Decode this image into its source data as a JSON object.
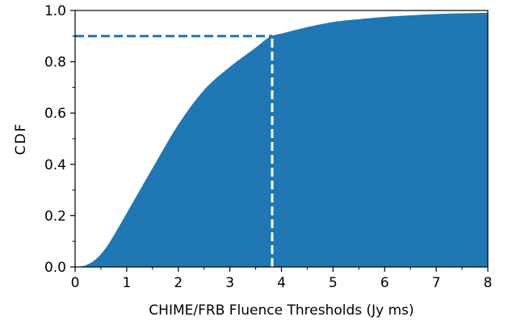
{
  "chart_data": {
    "type": "area",
    "title": "",
    "xlabel": "CHIME/FRB Fluence Thresholds  (Jy ms)",
    "ylabel": "CDF",
    "xlim": [
      0,
      8
    ],
    "ylim": [
      0,
      1
    ],
    "x_ticks": [
      "0",
      "1",
      "2",
      "3",
      "4",
      "5",
      "6",
      "7",
      "8"
    ],
    "y_ticks": [
      "0.0",
      "0.2",
      "0.4",
      "0.6",
      "0.8",
      "1.0"
    ],
    "grid": false,
    "legend": "none",
    "fill_color": "#1f77b4",
    "x": [
      0,
      0.2,
      0.4,
      0.6,
      0.8,
      1.0,
      1.2,
      1.5,
      2.0,
      2.5,
      3.0,
      3.5,
      3.8,
      4.0,
      4.5,
      5.0,
      5.5,
      6.0,
      6.5,
      7.0,
      7.5,
      8.0
    ],
    "y": [
      0.0,
      0.006,
      0.03,
      0.075,
      0.14,
      0.21,
      0.28,
      0.385,
      0.555,
      0.69,
      0.78,
      0.855,
      0.9,
      0.91,
      0.935,
      0.955,
      0.966,
      0.975,
      0.981,
      0.986,
      0.989,
      0.991
    ],
    "annotations": [
      {
        "type": "hline",
        "y": 0.9,
        "x_from": 0,
        "x_to": 3.82,
        "style": "dashed",
        "color": "#1f77b4"
      },
      {
        "type": "vline",
        "x": 3.82,
        "y_from": 0,
        "y_to": 0.9,
        "style": "dashed",
        "color": "#ffffff"
      }
    ]
  }
}
